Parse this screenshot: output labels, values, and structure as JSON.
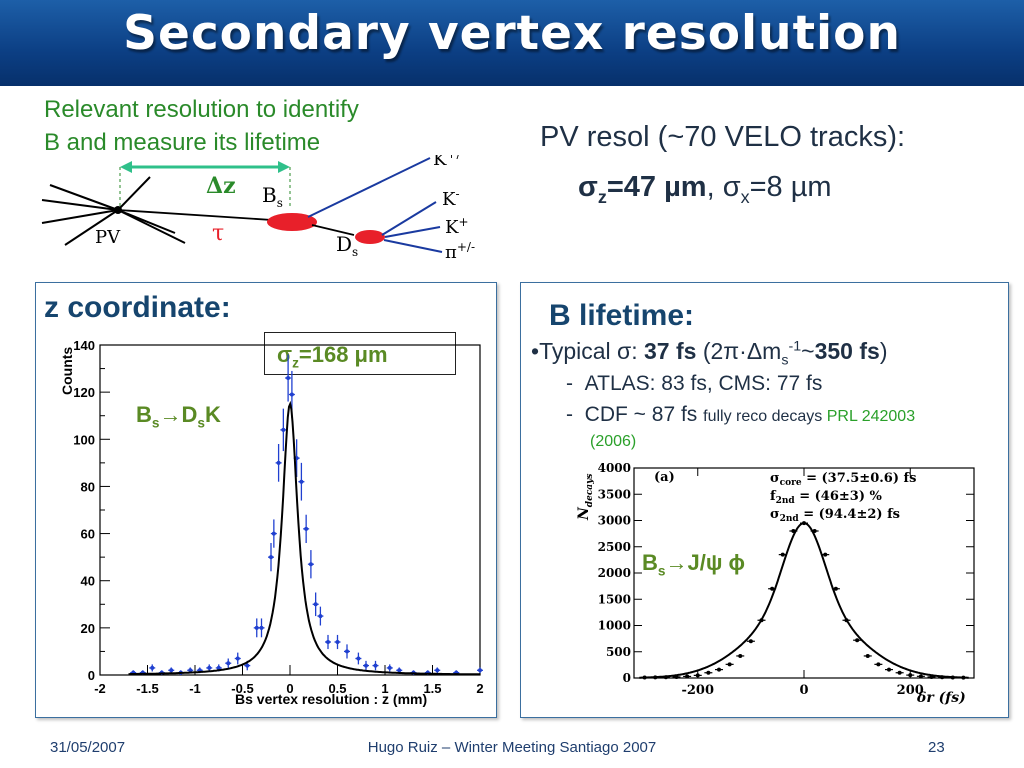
{
  "slide": {
    "title": "Secondary vertex resolution",
    "relevant_line1": "Relevant resolution to identify",
    "relevant_line2": "B and measure its lifetime",
    "pv_resol": "PV resol (~70 VELO tracks):",
    "sigma_z_pv_label": "σ",
    "sigma_z_pv_sub": "z",
    "sigma_z_pv_value": "=47 µm",
    "sigma_x_pv_label": ", σ",
    "sigma_x_pv_sub": "x",
    "sigma_x_pv_value": "=8 µm"
  },
  "diagram": {
    "dz_label": "Δz",
    "bs_label": "B",
    "bs_sub": "s",
    "tau_label": "τ",
    "pv_label": "PV",
    "ds_label": "D",
    "ds_sub": "s",
    "k_pm_label": "K",
    "k_pm_sup": "+/-",
    "k_minus_label": "K",
    "k_minus_sup": "-",
    "k_plus_label": "K",
    "k_plus_sup": "+",
    "pi_label": "π",
    "pi_sup": "+/-"
  },
  "left_panel": {
    "heading": "z coordinate:",
    "sigma_box_sym": "σ",
    "sigma_box_sub": "z",
    "sigma_box_value": "=168 μm",
    "decay_b": "B",
    "decay_b_sub": "s",
    "decay_arrow": "→D",
    "decay_d_sub": "s",
    "decay_k": "K"
  },
  "right_panel": {
    "heading": "B lifetime:",
    "typical_bullet": "•",
    "typical_prefix": "Typical σ: ",
    "typical_value": "37 fs",
    "typical_paren_open": " (2π·Δm",
    "typical_ms_sub": "s",
    "typical_ms_sup": "-1",
    "typical_tilde": "~",
    "typical_350": "350 fs",
    "typical_paren_close": ")",
    "atlas_dash": "-",
    "atlas_text": "ATLAS: 83 fs, CMS: 77 fs",
    "cdf_dash": "-",
    "cdf_text": "CDF ~ 87 fs ",
    "cdf_small": "fully reco decays ",
    "cdf_prl": "PRL 242003",
    "cdf_year": "(2006)",
    "decay_b": "B",
    "decay_b_sub": "s",
    "decay_arrow": "→J/ψ ϕ"
  },
  "footer": {
    "date": "31/05/2007",
    "center": "Hugo Ruiz – Winter Meeting Santiago 2007",
    "page": "23"
  },
  "chart_data": [
    {
      "type": "scatter",
      "xlabel": "Bs vertex resolution : z (mm)",
      "ylabel": "Counts",
      "xlim": [
        -2,
        2
      ],
      "ylim": [
        0,
        140
      ],
      "x_ticks": [
        -2,
        -1.5,
        -1,
        -0.5,
        0,
        0.5,
        1,
        1.5,
        2
      ],
      "y_ticks": [
        0,
        20,
        40,
        60,
        80,
        100,
        120,
        140
      ],
      "x_tick_labels": [
        "-2",
        "-1.5",
        "-1",
        "-0.5",
        "0",
        "0.5",
        "1",
        "1.5",
        "2"
      ],
      "y_tick_labels": [
        "0",
        "20",
        "40",
        "60",
        "80",
        "100",
        "120",
        "140"
      ],
      "grid": false,
      "fit": {
        "type": "lorentzian",
        "peak": 115,
        "center": 0,
        "hwhm": 0.1
      },
      "points": [
        {
          "x": -1.65,
          "y": 1,
          "err": 1
        },
        {
          "x": -1.55,
          "y": 1,
          "err": 1
        },
        {
          "x": -1.45,
          "y": 3,
          "err": 1.5
        },
        {
          "x": -1.35,
          "y": 1,
          "err": 1
        },
        {
          "x": -1.25,
          "y": 2,
          "err": 1.2
        },
        {
          "x": -1.15,
          "y": 1,
          "err": 1
        },
        {
          "x": -1.05,
          "y": 2,
          "err": 1.2
        },
        {
          "x": -0.95,
          "y": 2,
          "err": 1.2
        },
        {
          "x": -0.85,
          "y": 3,
          "err": 1.5
        },
        {
          "x": -0.75,
          "y": 3,
          "err": 1.5
        },
        {
          "x": -0.65,
          "y": 5,
          "err": 2
        },
        {
          "x": -0.55,
          "y": 7,
          "err": 2.5
        },
        {
          "x": -0.45,
          "y": 4,
          "err": 2
        },
        {
          "x": -0.35,
          "y": 20,
          "err": 4
        },
        {
          "x": -0.3,
          "y": 20,
          "err": 4
        },
        {
          "x": -0.2,
          "y": 50,
          "err": 6
        },
        {
          "x": -0.17,
          "y": 60,
          "err": 6
        },
        {
          "x": -0.12,
          "y": 90,
          "err": 8
        },
        {
          "x": -0.07,
          "y": 104,
          "err": 9
        },
        {
          "x": -0.02,
          "y": 126,
          "err": 10
        },
        {
          "x": 0.02,
          "y": 119,
          "err": 10
        },
        {
          "x": 0.07,
          "y": 92,
          "err": 8
        },
        {
          "x": 0.12,
          "y": 82,
          "err": 8
        },
        {
          "x": 0.17,
          "y": 62,
          "err": 6
        },
        {
          "x": 0.22,
          "y": 47,
          "err": 6
        },
        {
          "x": 0.27,
          "y": 30,
          "err": 5
        },
        {
          "x": 0.32,
          "y": 25,
          "err": 4
        },
        {
          "x": 0.4,
          "y": 14,
          "err": 3
        },
        {
          "x": 0.5,
          "y": 14,
          "err": 3
        },
        {
          "x": 0.6,
          "y": 10,
          "err": 3
        },
        {
          "x": 0.72,
          "y": 7,
          "err": 2.5
        },
        {
          "x": 0.8,
          "y": 4,
          "err": 2
        },
        {
          "x": 0.9,
          "y": 4,
          "err": 2
        },
        {
          "x": 1.05,
          "y": 3,
          "err": 1.5
        },
        {
          "x": 1.15,
          "y": 2,
          "err": 1.2
        },
        {
          "x": 1.3,
          "y": 1,
          "err": 1
        },
        {
          "x": 1.45,
          "y": 1,
          "err": 1
        },
        {
          "x": 1.55,
          "y": 2,
          "err": 1.2
        },
        {
          "x": 1.75,
          "y": 1,
          "err": 1
        },
        {
          "x": 2.0,
          "y": 2,
          "err": 1.2
        }
      ]
    },
    {
      "type": "scatter",
      "xlabel": "δr (fs)",
      "ylabel": "N_decays",
      "ylabel_main": "N",
      "ylabel_sub": "decays",
      "annotation_a": "(a)",
      "legend": [
        {
          "sym": "σ",
          "sub": "core",
          "text": " = (37.5±0.6) fs"
        },
        {
          "sym": "f",
          "sub": "2nd",
          "text": " = (46±3) %"
        },
        {
          "sym": "σ",
          "sub": "2nd",
          "text": " = (94.4±2) fs"
        }
      ],
      "xlim": [
        -320,
        320
      ],
      "ylim": [
        0,
        4000
      ],
      "x_ticks": [
        -200,
        0,
        200
      ],
      "x_tick_labels": [
        "-200",
        "0",
        "200"
      ],
      "y_ticks": [
        0,
        500,
        1000,
        1500,
        2000,
        2500,
        3000,
        3500,
        4000
      ],
      "y_tick_labels": [
        "0",
        "500",
        "1000",
        "1500",
        "2000",
        "2500",
        "3000",
        "3500",
        "4000"
      ],
      "grid": false,
      "fit": {
        "type": "double-gaussian",
        "core_sigma": 37.5,
        "second_sigma": 94.4,
        "f2nd": 0.46,
        "peak": 2950
      },
      "points": [
        {
          "x": -300,
          "y": 10
        },
        {
          "x": -280,
          "y": 12
        },
        {
          "x": -260,
          "y": 15
        },
        {
          "x": -240,
          "y": 20
        },
        {
          "x": -220,
          "y": 30
        },
        {
          "x": -200,
          "y": 50
        },
        {
          "x": -180,
          "y": 100
        },
        {
          "x": -160,
          "y": 160
        },
        {
          "x": -140,
          "y": 260
        },
        {
          "x": -120,
          "y": 420
        },
        {
          "x": -100,
          "y": 700
        },
        {
          "x": -80,
          "y": 1100
        },
        {
          "x": -60,
          "y": 1700
        },
        {
          "x": -40,
          "y": 2350
        },
        {
          "x": -20,
          "y": 2800
        },
        {
          "x": 0,
          "y": 2950
        },
        {
          "x": 20,
          "y": 2800
        },
        {
          "x": 40,
          "y": 2350
        },
        {
          "x": 60,
          "y": 1700
        },
        {
          "x": 80,
          "y": 1100
        },
        {
          "x": 100,
          "y": 720
        },
        {
          "x": 120,
          "y": 420
        },
        {
          "x": 140,
          "y": 260
        },
        {
          "x": 160,
          "y": 160
        },
        {
          "x": 180,
          "y": 100
        },
        {
          "x": 200,
          "y": 55
        },
        {
          "x": 220,
          "y": 32
        },
        {
          "x": 240,
          "y": 20
        },
        {
          "x": 260,
          "y": 14
        },
        {
          "x": 280,
          "y": 10
        },
        {
          "x": 300,
          "y": 8
        }
      ]
    }
  ]
}
